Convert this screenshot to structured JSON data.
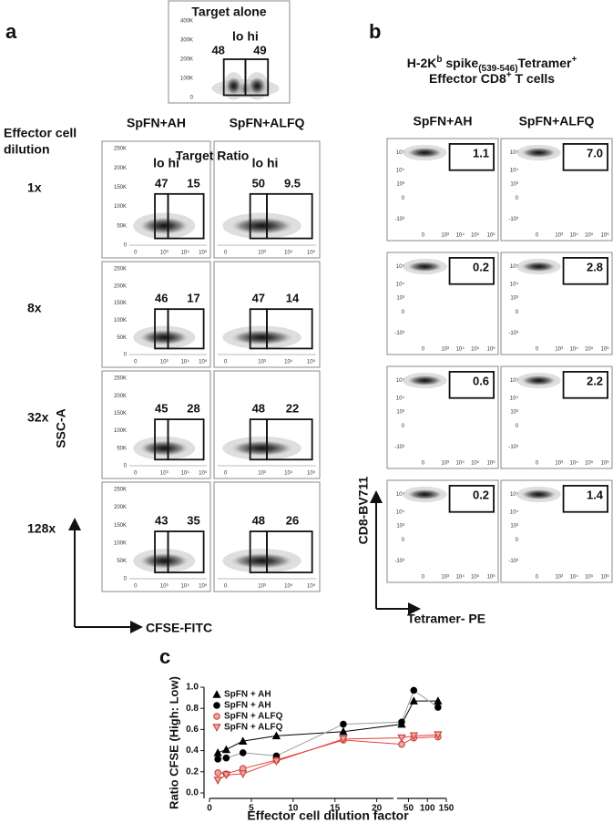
{
  "panel_a": {
    "label": "a",
    "target_alone": {
      "title": "Target alone",
      "gate_header": "lo hi",
      "gates": [
        "48",
        "49"
      ],
      "yticks": [
        "400K",
        "300K",
        "200K",
        "100K",
        "0"
      ]
    },
    "row_header": [
      "Effector cell",
      "dilution"
    ],
    "columns": [
      "SpFN+AH",
      "SpFN+ALFQ"
    ],
    "subtitle": "Target Ratio",
    "gate_header": "lo hi",
    "yticks": [
      "250K",
      "200K",
      "150K",
      "100K",
      "50K",
      "0"
    ],
    "xticks": [
      "0",
      "10³",
      "10⁴",
      "10⁵"
    ],
    "rows": [
      {
        "label": "1x",
        "gates": [
          [
            "47",
            "15"
          ],
          [
            "50",
            "9.5"
          ]
        ]
      },
      {
        "label": "8x",
        "gates": [
          [
            "46",
            "17"
          ],
          [
            "47",
            "14"
          ]
        ]
      },
      {
        "label": "32x",
        "gates": [
          [
            "45",
            "28"
          ],
          [
            "48",
            "22"
          ]
        ]
      },
      {
        "label": "128x",
        "gates": [
          [
            "43",
            "35"
          ],
          [
            "48",
            "26"
          ]
        ]
      }
    ],
    "y_label": "SSC-A",
    "x_label": "CFSE-FITC"
  },
  "panel_b": {
    "label": "b",
    "title": [
      [
        "H-2K",
        "b",
        " spike",
        "(539-546)",
        "Tetramer",
        "+"
      ],
      [
        "Effector CD8",
        "+",
        " T cells"
      ]
    ],
    "columns": [
      "SpFN+AH",
      "SpFN+ALFQ"
    ],
    "yticks": [
      "10⁵",
      "10⁴",
      "10³",
      "0",
      "-10³"
    ],
    "xticks": [
      "0",
      "10³",
      "10⁴",
      "10⁵",
      "10⁶"
    ],
    "rows": [
      [
        "1.1",
        "7.0"
      ],
      [
        "0.2",
        "2.8"
      ],
      [
        "0.6",
        "2.2"
      ],
      [
        "0.2",
        "1.4"
      ]
    ],
    "y_label": "CD8-BV711",
    "x_label": "Tetramer- PE"
  },
  "chart_data": {
    "type": "line",
    "panel_label": "c",
    "x": [
      1,
      2,
      4,
      8,
      16,
      32,
      64,
      128
    ],
    "series": [
      {
        "name": "SpFN + AH",
        "marker": "triangle-up",
        "color": "#000000",
        "edge_color": "#000000",
        "line_color": "#000000",
        "values": [
          0.38,
          0.41,
          0.49,
          0.54,
          0.58,
          0.65,
          0.87,
          0.87
        ]
      },
      {
        "name": "SpFN + AH",
        "marker": "circle",
        "color": "#000000",
        "edge_color": "#000000",
        "line_color": "#9a9a9a",
        "values": [
          0.32,
          0.33,
          0.38,
          0.35,
          0.65,
          0.67,
          0.97,
          0.81
        ]
      },
      {
        "name": "SpFN + ALFQ",
        "marker": "circle",
        "color": "#f3a3a0",
        "edge_color": "#c0392b",
        "line_color": "#e8403a",
        "values": [
          0.19,
          0.18,
          0.23,
          0.31,
          0.5,
          0.46,
          0.52,
          0.53
        ]
      },
      {
        "name": "SpFN + ALFQ",
        "marker": "triangle-down",
        "color": "#f3a3a0",
        "edge_color": "#c0392b",
        "line_color": "#e8403a",
        "values": [
          0.12,
          0.17,
          0.18,
          0.3,
          0.51,
          0.52,
          0.54,
          0.55
        ]
      }
    ],
    "ylim": [
      0,
      1
    ],
    "yticks": [
      {
        "value": 0,
        "label": "0.0"
      },
      0.2,
      0.4,
      0.6,
      0.8,
      {
        "value": 1,
        "label": "1.0"
      }
    ],
    "x_segments": [
      {
        "xlim": [
          0,
          22
        ],
        "xticks": [
          0,
          5,
          10,
          15,
          20
        ]
      },
      {
        "xlim": [
          20,
          150
        ],
        "xticks": [
          50,
          100,
          150
        ]
      }
    ],
    "xlabel": "Effector cell dilution factor",
    "ylabel": "Ratio CFSE (High: Low)",
    "legend": "upper left"
  }
}
